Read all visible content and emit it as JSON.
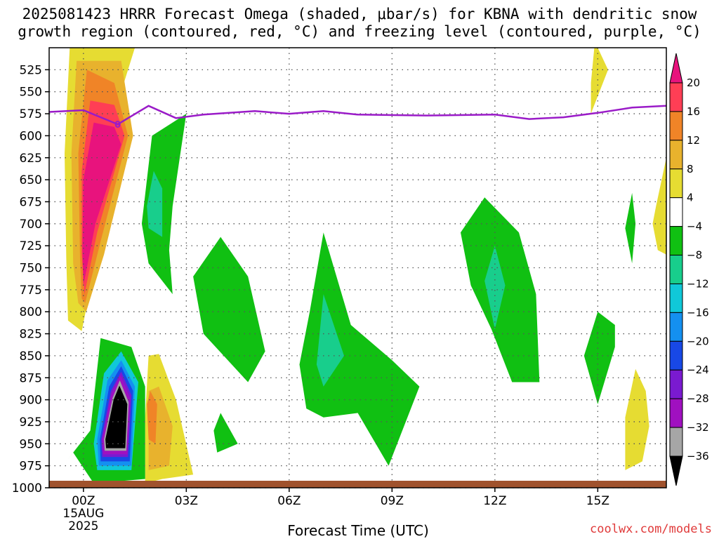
{
  "title_line1": "2025081423 HRRR Forecast Omega (shaded, μbar/s) for KBNA with dendritic snow",
  "title_line2": "growth region (contoured, red, °C) and freezing level (contoured, purple, °C)",
  "credit": "coolwx.com/models",
  "chart_data": {
    "type": "contour",
    "title": "2025081423 HRRR Forecast Omega (shaded, μbar/s) for KBNA with dendritic snow growth region (contoured, red, °C) and freezing level (contoured, purple, °C)",
    "xlabel": "Forecast Time (UTC)",
    "ylabel": "",
    "x_range_hours": [
      -1,
      17
    ],
    "y_range_mb": [
      1000,
      500
    ],
    "x_ticks": [
      {
        "hour": 0,
        "label": "00Z",
        "sublabel1": "15AUG",
        "sublabel2": "2025"
      },
      {
        "hour": 3,
        "label": "03Z"
      },
      {
        "hour": 6,
        "label": "06Z"
      },
      {
        "hour": 9,
        "label": "09Z"
      },
      {
        "hour": 12,
        "label": "12Z"
      },
      {
        "hour": 15,
        "label": "15Z"
      }
    ],
    "y_ticks": [
      525,
      550,
      575,
      600,
      625,
      650,
      675,
      700,
      725,
      750,
      775,
      800,
      825,
      850,
      875,
      900,
      925,
      950,
      975,
      1000
    ],
    "colorbar": {
      "levels": [
        20,
        16,
        12,
        8,
        4,
        -4,
        -8,
        -12,
        -16,
        -20,
        -24,
        -28,
        -32,
        -36
      ],
      "colors": [
        "#ff3e55",
        "#f08427",
        "#e8b22d",
        "#e6dc32",
        "#ffffff",
        "#10c012",
        "#18ce8c",
        "#10c8d8",
        "#1490f0",
        "#1848e6",
        "#7a1ad0",
        "#a010c0",
        "#a6a6a6"
      ],
      "top_arrow_color": "#e8137d",
      "bottom_arrow_color": "#000000"
    },
    "freezing_level_series": {
      "color": "#9a1bc8",
      "value_label": "0",
      "points": [
        [
          -1,
          573
        ],
        [
          0,
          571
        ],
        [
          1,
          587
        ],
        [
          1.9,
          566
        ],
        [
          2.7,
          580
        ],
        [
          3.5,
          576
        ],
        [
          5,
          572
        ],
        [
          6,
          575
        ],
        [
          7,
          572
        ],
        [
          8,
          576
        ],
        [
          10,
          577
        ],
        [
          12,
          576
        ],
        [
          13,
          581
        ],
        [
          14,
          579
        ],
        [
          15,
          574
        ],
        [
          16,
          568
        ],
        [
          17,
          566
        ]
      ]
    },
    "omega_regions": [
      {
        "value": 4,
        "color": "#e6dc32",
        "points": [
          [
            -0.05,
            822
          ],
          [
            0.4,
            735
          ],
          [
            0.9,
            575
          ],
          [
            1.5,
            500
          ],
          [
            1.0,
            500
          ],
          [
            -0.4,
            500
          ],
          [
            -0.55,
            620
          ],
          [
            -0.5,
            740
          ],
          [
            -0.45,
            810
          ]
        ]
      },
      {
        "value": 8,
        "color": "#e8b22d",
        "points": [
          [
            0.08,
            800
          ],
          [
            0.6,
            735
          ],
          [
            1.45,
            600
          ],
          [
            1.1,
            515
          ],
          [
            -0.2,
            515
          ],
          [
            -0.35,
            620
          ],
          [
            -0.3,
            745
          ],
          [
            -0.15,
            790
          ]
        ]
      },
      {
        "value": 12,
        "color": "#f08427",
        "points": [
          [
            0.05,
            790
          ],
          [
            0.5,
            720
          ],
          [
            1.3,
            600
          ],
          [
            0.9,
            540
          ],
          [
            0.1,
            525
          ],
          [
            -0.15,
            620
          ],
          [
            -0.1,
            740
          ],
          [
            -0.05,
            785
          ]
        ]
      },
      {
        "value": 16,
        "color": "#ff3e55",
        "points": [
          [
            0.03,
            780
          ],
          [
            0.4,
            710
          ],
          [
            1.2,
            600
          ],
          [
            0.9,
            565
          ],
          [
            0.2,
            560
          ],
          [
            -0.05,
            640
          ],
          [
            -0.05,
            735
          ]
        ]
      },
      {
        "value": 20,
        "color": "#e8137d",
        "points": [
          [
            0.0,
            770
          ],
          [
            0.35,
            700
          ],
          [
            1.1,
            610
          ],
          [
            0.9,
            590
          ],
          [
            0.3,
            585
          ],
          [
            0.0,
            650
          ],
          [
            -0.03,
            730
          ]
        ]
      },
      {
        "value": 4,
        "color": "#e6dc32",
        "points": [
          [
            1.8,
            995
          ],
          [
            2.3,
            990
          ],
          [
            3.2,
            985
          ],
          [
            2.7,
            900
          ],
          [
            2.2,
            848
          ],
          [
            1.9,
            850
          ],
          [
            1.8,
            920
          ]
        ]
      },
      {
        "value": 8,
        "color": "#e8b22d",
        "points": [
          [
            1.9,
            980
          ],
          [
            2.5,
            975
          ],
          [
            2.6,
            930
          ],
          [
            2.2,
            885
          ],
          [
            1.9,
            890
          ]
        ]
      },
      {
        "value": 12,
        "color": "#f08427",
        "points": [
          [
            1.9,
            945
          ],
          [
            2.1,
            950
          ],
          [
            2.15,
            905
          ],
          [
            1.95,
            890
          ],
          [
            1.85,
            905
          ]
        ]
      },
      {
        "value": 4,
        "color": "#e6dc32",
        "points": [
          [
            14.8,
            575
          ],
          [
            14.85,
            570
          ],
          [
            15.3,
            525
          ],
          [
            15.0,
            500
          ],
          [
            14.9,
            500
          ],
          [
            14.8,
            540
          ]
        ]
      },
      {
        "value": 4,
        "color": "#e6dc32",
        "points": [
          [
            17.0,
            735
          ],
          [
            17.0,
            625
          ],
          [
            16.7,
            680
          ],
          [
            16.6,
            700
          ],
          [
            16.75,
            730
          ]
        ]
      },
      {
        "value": 4,
        "color": "#e6dc32",
        "points": [
          [
            15.8,
            980
          ],
          [
            16.3,
            970
          ],
          [
            16.5,
            930
          ],
          [
            16.4,
            890
          ],
          [
            16.1,
            865
          ],
          [
            15.8,
            920
          ]
        ]
      },
      {
        "value": -4,
        "color": "#10c012",
        "points": [
          [
            1.9,
            745
          ],
          [
            2.6,
            780
          ],
          [
            2.5,
            730
          ],
          [
            2.6,
            680
          ],
          [
            3.0,
            575
          ],
          [
            2.0,
            600
          ],
          [
            1.7,
            700
          ]
        ]
      },
      {
        "value": -8,
        "color": "#18ce8c",
        "points": [
          [
            1.9,
            705
          ],
          [
            2.3,
            715
          ],
          [
            2.3,
            660
          ],
          [
            2.05,
            640
          ],
          [
            1.85,
            680
          ]
        ]
      },
      {
        "value": -4,
        "color": "#10c012",
        "points": [
          [
            3.5,
            825
          ],
          [
            4.8,
            880
          ],
          [
            5.3,
            845
          ],
          [
            4.8,
            760
          ],
          [
            4.0,
            715
          ],
          [
            3.2,
            760
          ]
        ]
      },
      {
        "value": -4,
        "color": "#10c012",
        "points": [
          [
            3.9,
            960
          ],
          [
            4.5,
            950
          ],
          [
            4.0,
            915
          ],
          [
            3.8,
            935
          ]
        ]
      },
      {
        "value": -4,
        "color": "#10c012",
        "points": [
          [
            7.0,
            920
          ],
          [
            8.0,
            915
          ],
          [
            8.9,
            975
          ],
          [
            9.8,
            885
          ],
          [
            9.0,
            855
          ],
          [
            7.8,
            815
          ],
          [
            7.0,
            710
          ],
          [
            6.6,
            800
          ],
          [
            6.3,
            860
          ],
          [
            6.5,
            910
          ]
        ]
      },
      {
        "value": -8,
        "color": "#18ce8c",
        "points": [
          [
            7.0,
            885
          ],
          [
            7.6,
            850
          ],
          [
            7.0,
            780
          ],
          [
            6.8,
            860
          ]
        ]
      },
      {
        "value": -4,
        "color": "#10c012",
        "points": [
          [
            12.5,
            880
          ],
          [
            13.3,
            880
          ],
          [
            13.2,
            780
          ],
          [
            12.7,
            710
          ],
          [
            11.7,
            670
          ],
          [
            11.0,
            710
          ],
          [
            11.3,
            770
          ],
          [
            11.9,
            820
          ]
        ]
      },
      {
        "value": -8,
        "color": "#18ce8c",
        "points": [
          [
            12.0,
            820
          ],
          [
            12.3,
            770
          ],
          [
            12.0,
            725
          ],
          [
            11.7,
            765
          ]
        ]
      },
      {
        "value": -4,
        "color": "#10c012",
        "points": [
          [
            15.0,
            905
          ],
          [
            15.5,
            840
          ],
          [
            15.5,
            815
          ],
          [
            15.0,
            800
          ],
          [
            14.6,
            850
          ]
        ]
      },
      {
        "value": -4,
        "color": "#10c012",
        "points": [
          [
            16.0,
            745
          ],
          [
            16.1,
            700
          ],
          [
            16.0,
            665
          ],
          [
            15.8,
            705
          ]
        ]
      },
      {
        "value": -4,
        "color": "#10c012",
        "points": [
          [
            -0.3,
            960
          ],
          [
            0.3,
            995
          ],
          [
            1.8,
            990
          ],
          [
            1.8,
            885
          ],
          [
            1.4,
            840
          ],
          [
            0.5,
            830
          ],
          [
            0.2,
            935
          ],
          [
            -0.5,
            970
          ]
        ]
      },
      {
        "value": -12,
        "color": "#10c8d8",
        "points": [
          [
            0.4,
            980
          ],
          [
            1.4,
            980
          ],
          [
            1.6,
            880
          ],
          [
            1.1,
            845
          ],
          [
            0.6,
            870
          ],
          [
            0.3,
            950
          ]
        ]
      },
      {
        "value": -16,
        "color": "#1490f0",
        "points": [
          [
            0.45,
            975
          ],
          [
            1.4,
            975
          ],
          [
            1.5,
            885
          ],
          [
            1.1,
            855
          ],
          [
            0.7,
            878
          ],
          [
            0.4,
            945
          ]
        ]
      },
      {
        "value": -20,
        "color": "#1848e6",
        "points": [
          [
            0.5,
            970
          ],
          [
            1.35,
            970
          ],
          [
            1.45,
            890
          ],
          [
            1.1,
            862
          ],
          [
            0.75,
            885
          ],
          [
            0.48,
            945
          ]
        ]
      },
      {
        "value": -24,
        "color": "#7a1ad0",
        "points": [
          [
            0.55,
            965
          ],
          [
            1.3,
            965
          ],
          [
            1.4,
            895
          ],
          [
            1.1,
            868
          ],
          [
            0.8,
            890
          ],
          [
            0.52,
            945
          ]
        ]
      },
      {
        "value": -28,
        "color": "#a010c0",
        "points": [
          [
            0.58,
            962
          ],
          [
            1.28,
            962
          ],
          [
            1.36,
            898
          ],
          [
            1.08,
            872
          ],
          [
            0.82,
            893
          ],
          [
            0.55,
            945
          ]
        ]
      },
      {
        "value": -32,
        "color": "#a6a6a6",
        "points": [
          [
            0.62,
            958
          ],
          [
            1.25,
            958
          ],
          [
            1.32,
            903
          ],
          [
            1.06,
            878
          ],
          [
            0.85,
            898
          ],
          [
            0.6,
            945
          ]
        ]
      },
      {
        "value": -36,
        "color": "#000000",
        "points": [
          [
            0.66,
            955
          ],
          [
            1.22,
            955
          ],
          [
            1.28,
            905
          ],
          [
            1.05,
            884
          ],
          [
            0.88,
            900
          ],
          [
            0.64,
            945
          ]
        ]
      }
    ],
    "terrain_color": "#a0522d"
  }
}
